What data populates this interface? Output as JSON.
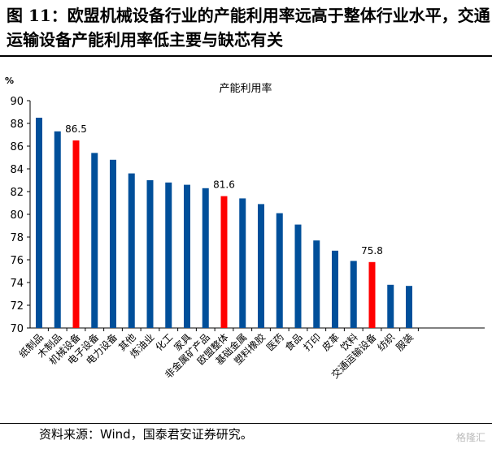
{
  "header": {
    "title": "图 11：欧盟机械设备行业的产能利用率远高于整体行业水平，交通运输设备产能利用率低主要与缺芯有关"
  },
  "footer": {
    "source": "资料来源：Wind，国泰君安证券研究。",
    "watermark": "格隆汇"
  },
  "colors": {
    "blue": "#004F9A",
    "red": "#FF0000"
  },
  "chart_data": {
    "type": "bar",
    "title": "产能利用率",
    "ylabel": "%",
    "xlabel": "",
    "ylim": [
      70,
      90
    ],
    "yticks": [
      70,
      72,
      74,
      76,
      78,
      80,
      82,
      84,
      86,
      88,
      90
    ],
    "grid": false,
    "categories": [
      "纸制品",
      "木制品",
      "机械设备",
      "电子设备",
      "电力设备",
      "其他",
      "炼油业",
      "化工",
      "家具",
      "非金属矿产品",
      "欧盟整体",
      "基础金属",
      "塑料橡胶",
      "医药",
      "食品",
      "打印",
      "皮革",
      "饮料",
      "交通运输设备",
      "纺织",
      "服装"
    ],
    "values": [
      88.5,
      87.3,
      86.5,
      85.4,
      84.8,
      83.6,
      83.0,
      82.8,
      82.6,
      82.3,
      81.6,
      81.4,
      80.9,
      80.1,
      79.1,
      77.7,
      76.8,
      75.9,
      75.8,
      73.8,
      73.7
    ],
    "highlighted": [
      2,
      10,
      18
    ],
    "data_labels": {
      "2": "86.5",
      "10": "81.6",
      "18": "75.8"
    }
  }
}
